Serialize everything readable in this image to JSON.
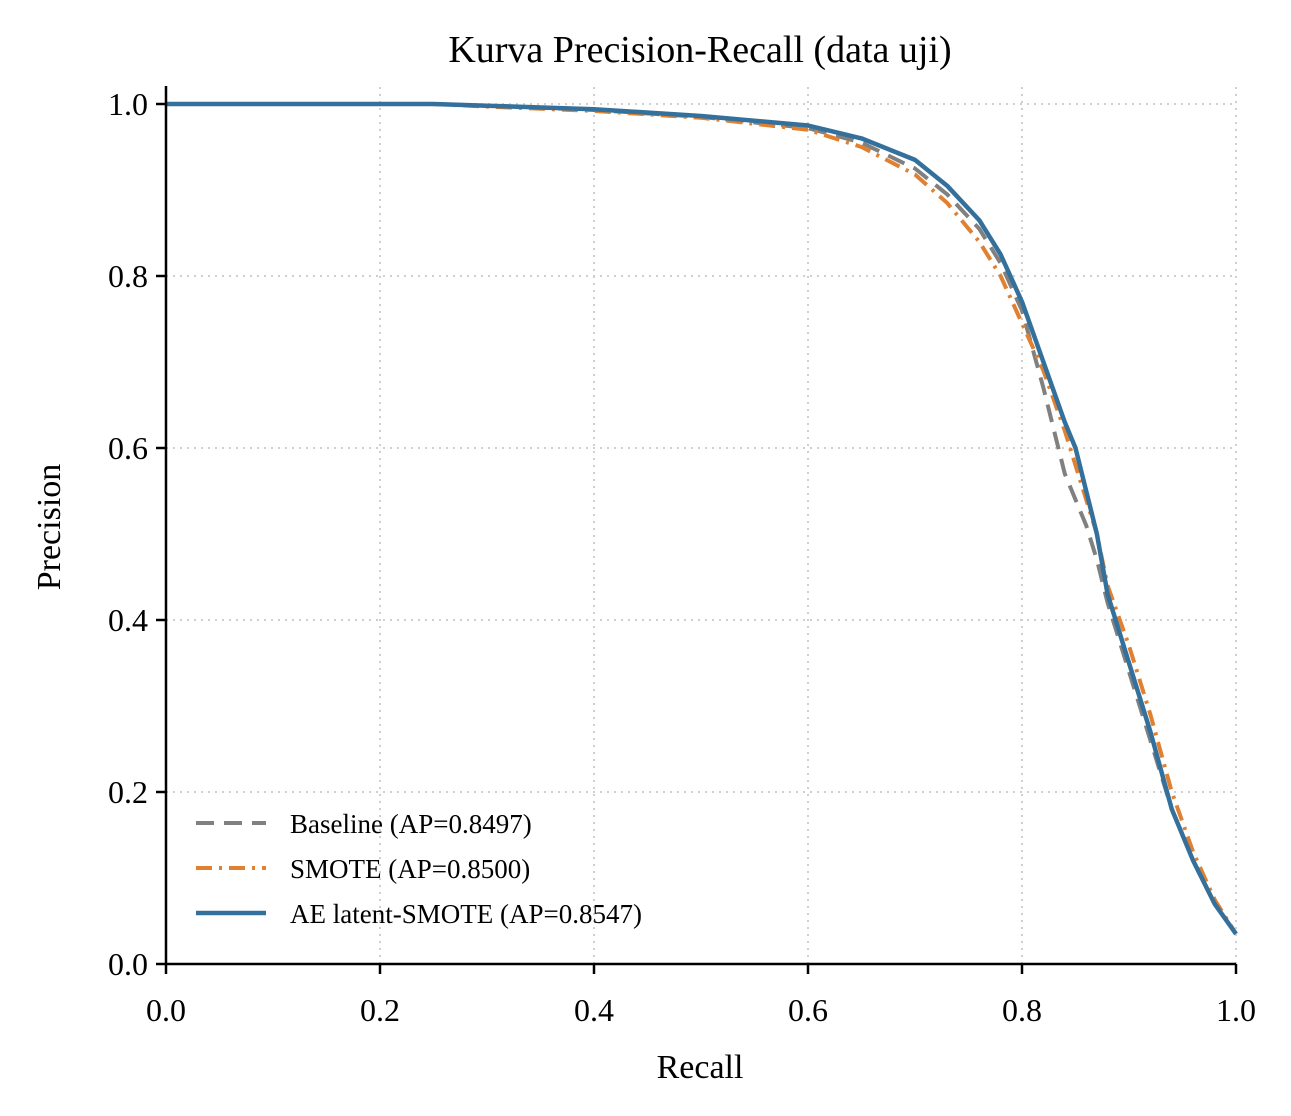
{
  "chart_data": {
    "type": "line",
    "title": "Kurva Precision-Recall (data uji)",
    "xlabel": "Recall",
    "ylabel": "Precision",
    "xlim": [
      0,
      1
    ],
    "ylim": [
      0,
      1
    ],
    "xticks": [
      "0.0",
      "0.2",
      "0.4",
      "0.6",
      "0.8",
      "1.0"
    ],
    "yticks": [
      "0.0",
      "0.2",
      "0.4",
      "0.6",
      "0.8",
      "1.0"
    ],
    "grid": true,
    "legend_position": "lower-left",
    "series": [
      {
        "name": "Baseline (AP=0.8497)",
        "color": "#808080",
        "style": "dashed",
        "points": [
          [
            0,
            1.0
          ],
          [
            0.25,
            1.0
          ],
          [
            0.3,
            0.998
          ],
          [
            0.4,
            0.993
          ],
          [
            0.5,
            0.985
          ],
          [
            0.6,
            0.972
          ],
          [
            0.65,
            0.955
          ],
          [
            0.7,
            0.925
          ],
          [
            0.73,
            0.895
          ],
          [
            0.76,
            0.855
          ],
          [
            0.78,
            0.815
          ],
          [
            0.8,
            0.76
          ],
          [
            0.82,
            0.67
          ],
          [
            0.84,
            0.57
          ],
          [
            0.86,
            0.51
          ],
          [
            0.87,
            0.47
          ],
          [
            0.88,
            0.42
          ],
          [
            0.9,
            0.34
          ],
          [
            0.92,
            0.26
          ],
          [
            0.94,
            0.18
          ],
          [
            0.96,
            0.12
          ],
          [
            0.98,
            0.07
          ],
          [
            1.0,
            0.035
          ]
        ]
      },
      {
        "name": "SMOTE (AP=0.8500)",
        "color": "#e08030",
        "style": "dashdot",
        "points": [
          [
            0,
            1.0
          ],
          [
            0.25,
            1.0
          ],
          [
            0.3,
            0.997
          ],
          [
            0.4,
            0.992
          ],
          [
            0.5,
            0.984
          ],
          [
            0.6,
            0.97
          ],
          [
            0.65,
            0.95
          ],
          [
            0.7,
            0.918
          ],
          [
            0.73,
            0.885
          ],
          [
            0.76,
            0.84
          ],
          [
            0.78,
            0.8
          ],
          [
            0.8,
            0.745
          ],
          [
            0.82,
            0.69
          ],
          [
            0.84,
            0.62
          ],
          [
            0.86,
            0.54
          ],
          [
            0.87,
            0.5
          ],
          [
            0.88,
            0.44
          ],
          [
            0.9,
            0.37
          ],
          [
            0.92,
            0.29
          ],
          [
            0.94,
            0.2
          ],
          [
            0.96,
            0.13
          ],
          [
            0.98,
            0.075
          ],
          [
            1.0,
            0.035
          ]
        ]
      },
      {
        "name": "AE latent-SMOTE (AP=0.8547)",
        "color": "#33709c",
        "style": "solid",
        "points": [
          [
            0,
            1.0
          ],
          [
            0.25,
            1.0
          ],
          [
            0.3,
            0.998
          ],
          [
            0.4,
            0.994
          ],
          [
            0.5,
            0.986
          ],
          [
            0.6,
            0.975
          ],
          [
            0.65,
            0.96
          ],
          [
            0.7,
            0.935
          ],
          [
            0.73,
            0.905
          ],
          [
            0.76,
            0.865
          ],
          [
            0.78,
            0.825
          ],
          [
            0.8,
            0.77
          ],
          [
            0.82,
            0.7
          ],
          [
            0.84,
            0.63
          ],
          [
            0.85,
            0.6
          ],
          [
            0.86,
            0.55
          ],
          [
            0.87,
            0.5
          ],
          [
            0.88,
            0.43
          ],
          [
            0.9,
            0.35
          ],
          [
            0.92,
            0.27
          ],
          [
            0.94,
            0.18
          ],
          [
            0.96,
            0.12
          ],
          [
            0.98,
            0.07
          ],
          [
            1.0,
            0.035
          ]
        ]
      }
    ]
  }
}
